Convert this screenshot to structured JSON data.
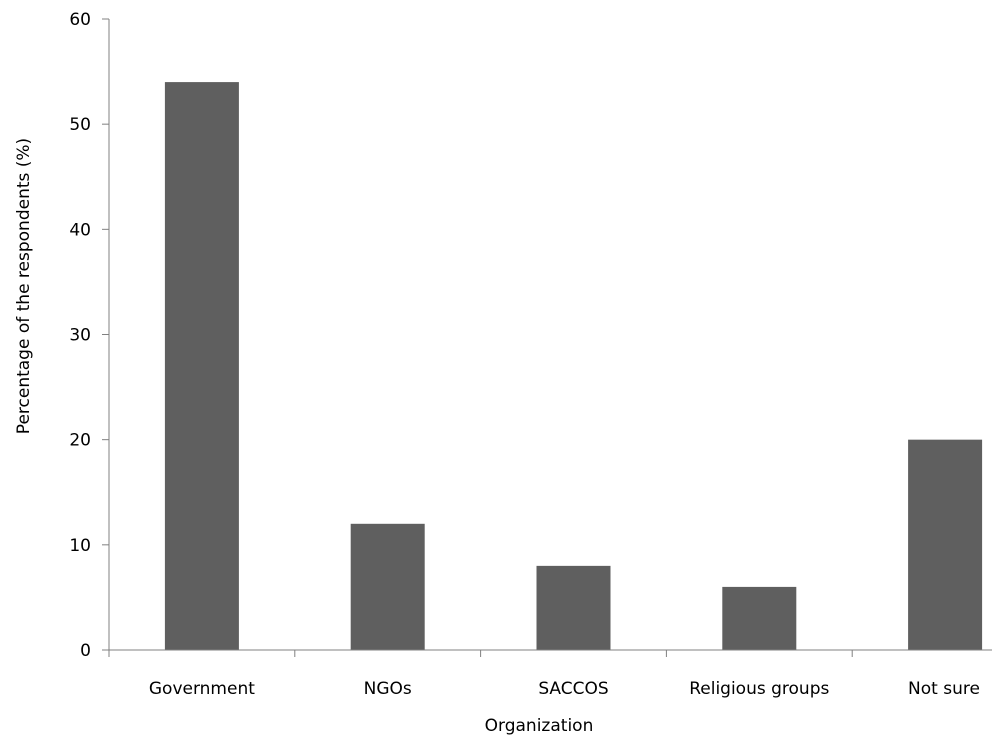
{
  "chart_data": {
    "type": "bar",
    "categories": [
      "Government",
      "NGOs",
      "SACCOS",
      "Religious groups",
      "Not sure"
    ],
    "values": [
      54,
      12,
      8,
      6,
      20
    ],
    "xlabel": "Organization",
    "ylabel": "Percentage of the respondents (%)",
    "ylim": [
      0,
      60
    ],
    "yticks": [
      0,
      10,
      20,
      30,
      40,
      50,
      60
    ],
    "grid": false,
    "legend": "none",
    "bar_color": "#5f5f5f"
  }
}
